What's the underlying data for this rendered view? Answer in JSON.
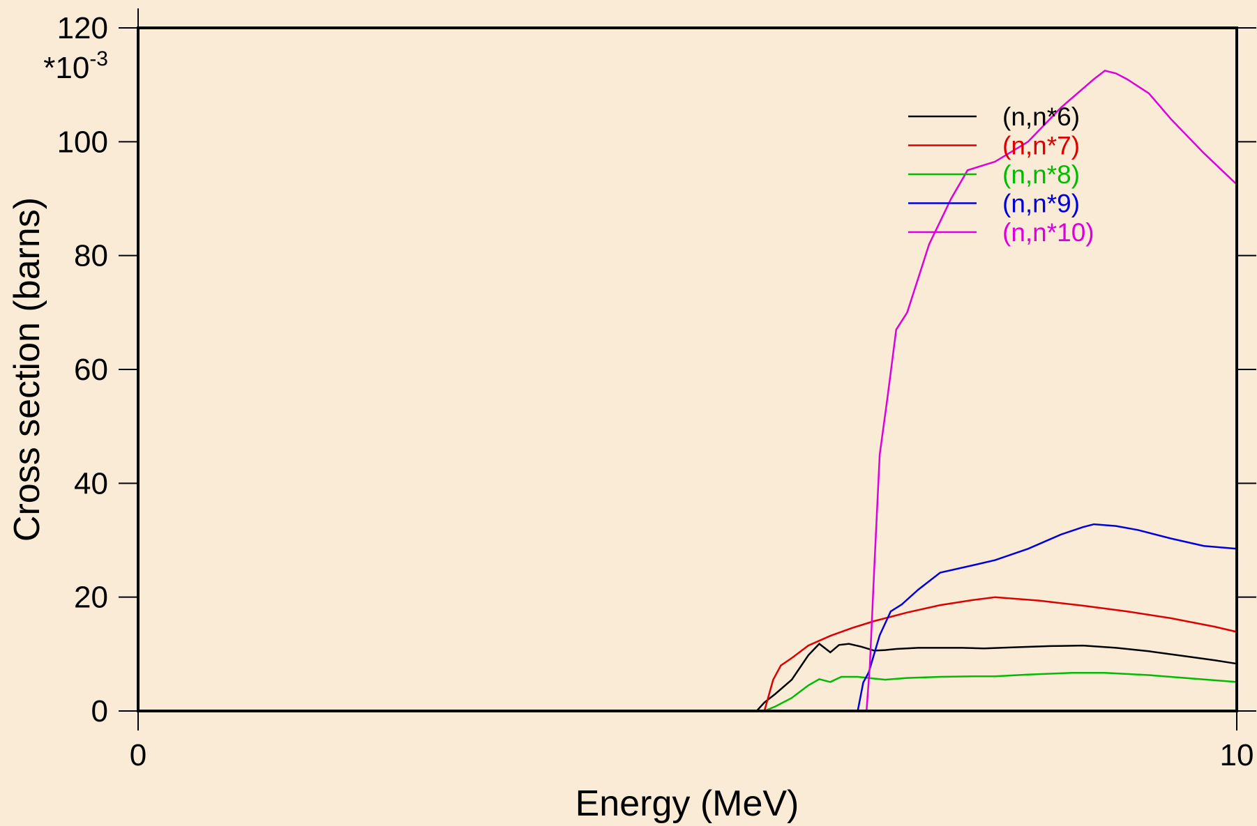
{
  "chart_data": {
    "type": "line",
    "xlabel": "Energy (MeV)",
    "ylabel": "Cross section (barns)",
    "y_multiplier": "*10",
    "y_multiplier_exp": "-3",
    "xlim": [
      0,
      10
    ],
    "ylim": [
      0,
      120
    ],
    "x_ticks": [
      "0",
      "10"
    ],
    "y_ticks": [
      "0",
      "20",
      "40",
      "60",
      "80",
      "100",
      "120"
    ],
    "y_tick_values": [
      0,
      20,
      40,
      60,
      80,
      100,
      120
    ],
    "grid": false,
    "legend_position": "top-right",
    "colors": {
      "background": "#faebd7",
      "plot_area": "#faebd7"
    },
    "series": [
      {
        "name": "(n,n*6)",
        "color": "#000000",
        "x": [
          0,
          5.63,
          5.7,
          5.8,
          5.95,
          6.1,
          6.2,
          6.3,
          6.38,
          6.47,
          6.58,
          6.7,
          6.8,
          6.9,
          7.1,
          7.3,
          7.5,
          7.7,
          8.0,
          8.3,
          8.6,
          8.9,
          9.2,
          9.5,
          9.8,
          10.0
        ],
        "y": [
          0,
          0,
          1.5,
          3.0,
          5.5,
          9.8,
          11.8,
          10.3,
          11.6,
          11.8,
          11.3,
          10.6,
          10.7,
          10.9,
          11.1,
          11.1,
          11.1,
          11.0,
          11.2,
          11.4,
          11.5,
          11.1,
          10.5,
          9.7,
          8.9,
          8.3
        ]
      },
      {
        "name": "(n,n*7)",
        "color": "#dd0000",
        "x": [
          5.7,
          5.78,
          5.85,
          5.95,
          6.1,
          6.3,
          6.5,
          6.7,
          7.0,
          7.3,
          7.6,
          7.8,
          8.2,
          8.6,
          9.0,
          9.4,
          9.8,
          10.0
        ],
        "y": [
          0,
          5.5,
          8.0,
          9.3,
          11.5,
          13.2,
          14.6,
          15.8,
          17.3,
          18.6,
          19.5,
          20.0,
          19.4,
          18.5,
          17.5,
          16.3,
          14.8,
          13.9
        ]
      },
      {
        "name": "(n,n*8)",
        "color": "#00bb00",
        "x": [
          5.7,
          5.8,
          5.95,
          6.1,
          6.2,
          6.3,
          6.4,
          6.55,
          6.7,
          6.8,
          7.0,
          7.3,
          7.6,
          7.8,
          8.1,
          8.5,
          8.8,
          9.2,
          9.6,
          10.0
        ],
        "y": [
          0,
          0.8,
          2.3,
          4.5,
          5.6,
          5.1,
          6.0,
          6.0,
          5.7,
          5.5,
          5.8,
          6.0,
          6.1,
          6.1,
          6.4,
          6.7,
          6.7,
          6.3,
          5.7,
          5.1
        ]
      },
      {
        "name": "(n,n*9)",
        "color": "#0000dd",
        "x": [
          6.55,
          6.6,
          6.65,
          6.75,
          6.85,
          6.95,
          7.1,
          7.3,
          7.6,
          7.8,
          8.1,
          8.4,
          8.6,
          8.7,
          8.9,
          9.1,
          9.4,
          9.7,
          10.0
        ],
        "y": [
          0,
          5.0,
          6.8,
          13.3,
          17.5,
          18.7,
          21.3,
          24.3,
          25.6,
          26.5,
          28.5,
          31.0,
          32.3,
          32.8,
          32.5,
          31.8,
          30.3,
          29.0,
          28.5
        ]
      },
      {
        "name": "(n,n*10)",
        "color": "#dd00dd",
        "x": [
          6.63,
          6.66,
          6.7,
          6.75,
          6.82,
          6.9,
          7.0,
          7.1,
          7.2,
          7.3,
          7.4,
          7.55,
          7.8,
          8.1,
          8.4,
          8.7,
          8.8,
          8.9,
          9.0,
          9.2,
          9.4,
          9.7,
          10.0
        ],
        "y": [
          0,
          8.0,
          25.0,
          45.0,
          55.0,
          67.0,
          70.0,
          76.0,
          82.0,
          86.0,
          90.0,
          95.0,
          96.5,
          100.0,
          106.0,
          111.0,
          112.5,
          112.0,
          111.0,
          108.5,
          104.0,
          98.0,
          92.5
        ]
      }
    ]
  }
}
